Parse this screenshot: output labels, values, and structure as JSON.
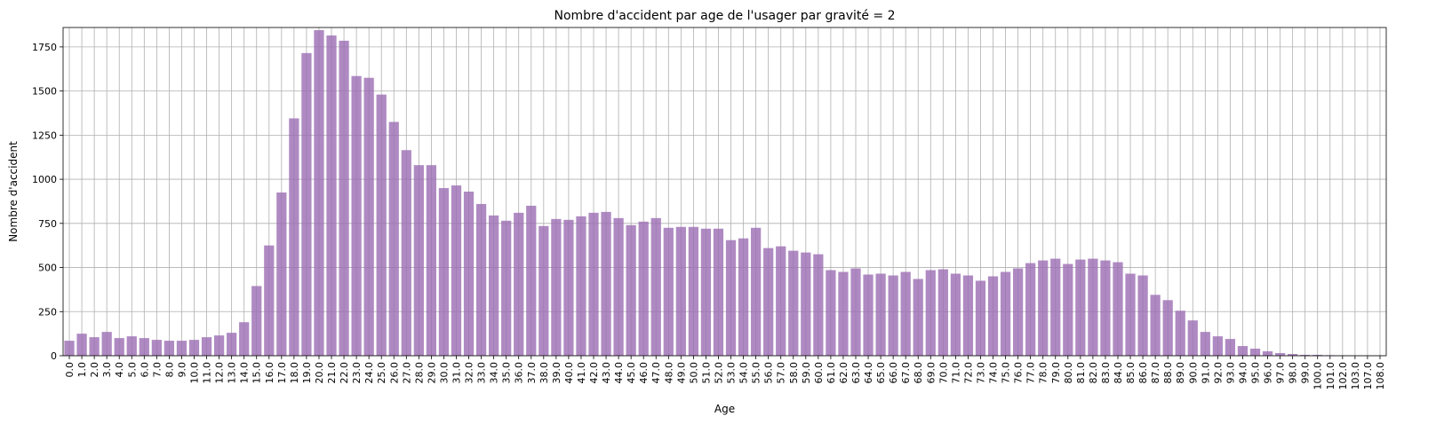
{
  "chart_data": {
    "type": "bar",
    "title": "Nombre d'accident par age de l'usager par gravité = 2",
    "xlabel": "Age",
    "ylabel": "Nombre d'accident",
    "categories": [
      "0.0",
      "1.0",
      "2.0",
      "3.0",
      "4.0",
      "5.0",
      "6.0",
      "7.0",
      "8.0",
      "9.0",
      "10.0",
      "11.0",
      "12.0",
      "13.0",
      "14.0",
      "15.0",
      "16.0",
      "17.0",
      "18.0",
      "19.0",
      "20.0",
      "21.0",
      "22.0",
      "23.0",
      "24.0",
      "25.0",
      "26.0",
      "27.0",
      "28.0",
      "29.0",
      "30.0",
      "31.0",
      "32.0",
      "33.0",
      "34.0",
      "35.0",
      "36.0",
      "37.0",
      "38.0",
      "39.0",
      "40.0",
      "41.0",
      "42.0",
      "43.0",
      "44.0",
      "45.0",
      "46.0",
      "47.0",
      "48.0",
      "49.0",
      "50.0",
      "51.0",
      "52.0",
      "53.0",
      "54.0",
      "55.0",
      "56.0",
      "57.0",
      "58.0",
      "59.0",
      "60.0",
      "61.0",
      "62.0",
      "63.0",
      "64.0",
      "65.0",
      "66.0",
      "67.0",
      "68.0",
      "69.0",
      "70.0",
      "71.0",
      "72.0",
      "73.0",
      "74.0",
      "75.0",
      "76.0",
      "77.0",
      "78.0",
      "79.0",
      "80.0",
      "81.0",
      "82.0",
      "83.0",
      "84.0",
      "85.0",
      "86.0",
      "87.0",
      "88.0",
      "89.0",
      "90.0",
      "91.0",
      "92.0",
      "93.0",
      "94.0",
      "95.0",
      "96.0",
      "97.0",
      "98.0",
      "99.0",
      "100.0",
      "101.0",
      "102.0",
      "103.0",
      "107.0",
      "108.0"
    ],
    "values": [
      85,
      125,
      105,
      135,
      100,
      110,
      100,
      90,
      85,
      85,
      90,
      105,
      115,
      130,
      190,
      395,
      625,
      925,
      1345,
      1715,
      1845,
      1815,
      1785,
      1585,
      1575,
      1480,
      1325,
      1165,
      1080,
      1080,
      950,
      965,
      930,
      860,
      795,
      765,
      810,
      850,
      735,
      775,
      770,
      790,
      810,
      815,
      780,
      740,
      760,
      780,
      725,
      730,
      730,
      720,
      720,
      655,
      665,
      725,
      610,
      620,
      595,
      585,
      575,
      485,
      475,
      495,
      460,
      465,
      455,
      475,
      435,
      485,
      490,
      465,
      455,
      425,
      450,
      475,
      495,
      525,
      540,
      550,
      520,
      545,
      550,
      540,
      530,
      465,
      455,
      345,
      315,
      255,
      200,
      135,
      110,
      95,
      55,
      40,
      25,
      15,
      10,
      5,
      5,
      3,
      2,
      1,
      1,
      1
    ],
    "ylim": [
      0,
      1860
    ],
    "yticks": [
      0,
      250,
      500,
      750,
      1000,
      1250,
      1500,
      1750
    ],
    "bar_color": "#9b6db3",
    "bar_opacity": 0.8,
    "grid": true,
    "legend": "none"
  }
}
